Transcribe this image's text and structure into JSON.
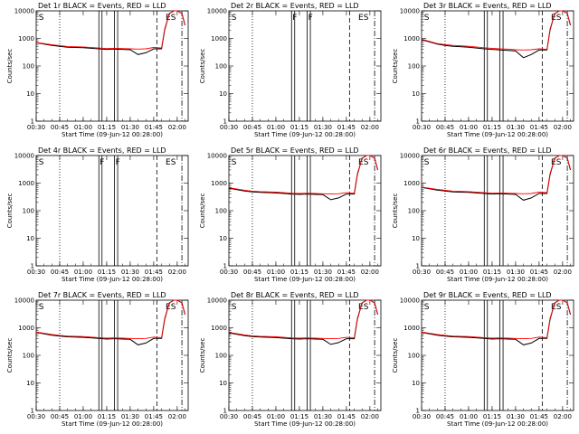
{
  "figure": {
    "ylabel": "Counts/sec",
    "xlabel": "Start Time (09-Jun-12 00:28:00)",
    "x_tick_labels": [
      "00:30",
      "00:45",
      "01:00",
      "01:15",
      "01:30",
      "01:45",
      "02:00"
    ],
    "y_tick_labels": [
      "1",
      "10",
      "100",
      "1000",
      "10000"
    ]
  },
  "chart_data": [
    {
      "type": "line",
      "title": "Det 1r BLACK = Events, RED = LLD",
      "has_data": true,
      "markers": [
        {
          "text": "S",
          "x": "00:31"
        },
        {
          "text": "ES",
          "x": "01:52"
        }
      ],
      "xlim": [
        "00:30",
        "02:07"
      ],
      "ylim": [
        1,
        10000
      ],
      "yscale": "log",
      "x": [
        "00:30",
        "00:40",
        "00:45",
        "00:50",
        "01:00",
        "01:10",
        "01:15",
        "01:20",
        "01:25",
        "01:30",
        "01:35",
        "01:40",
        "01:45",
        "01:50",
        "01:52",
        "01:55",
        "01:58",
        "02:00",
        "02:03",
        "02:05"
      ],
      "series": [
        {
          "color": "#000000",
          "values": [
            700,
            560,
            520,
            480,
            460,
            420,
            400,
            410,
            400,
            390,
            260,
            300,
            420,
            420,
            2000,
            8000,
            10000,
            10000,
            8000,
            3000
          ]
        },
        {
          "color": "#ff0000",
          "values": [
            720,
            590,
            550,
            510,
            490,
            450,
            430,
            440,
            430,
            420,
            410,
            420,
            470,
            450,
            2200,
            8000,
            10000,
            10000,
            8000,
            3200
          ]
        }
      ]
    },
    {
      "type": "line",
      "title": "Det 2r BLACK = Events, RED = LLD",
      "has_data": false,
      "markers": [
        {
          "text": "S",
          "x": "00:31"
        },
        {
          "text": "F",
          "x": "01:10"
        },
        {
          "text": "F",
          "x": "01:20"
        },
        {
          "text": "ES",
          "x": "01:52"
        }
      ],
      "xlim": [
        "00:30",
        "02:07"
      ],
      "ylim": [
        1,
        10000
      ],
      "yscale": "log",
      "x": [],
      "series": []
    },
    {
      "type": "line",
      "title": "Det 3r BLACK = Events, RED = LLD",
      "has_data": true,
      "markers": [
        {
          "text": "S",
          "x": "00:31"
        },
        {
          "text": "ES",
          "x": "01:52"
        }
      ],
      "xlim": [
        "00:30",
        "02:07"
      ],
      "ylim": [
        1,
        10000
      ],
      "yscale": "log",
      "x": [
        "00:30",
        "00:40",
        "00:45",
        "00:50",
        "01:00",
        "01:10",
        "01:15",
        "01:20",
        "01:25",
        "01:30",
        "01:35",
        "01:40",
        "01:45",
        "01:50",
        "01:52",
        "01:55",
        "01:58",
        "02:00",
        "02:03",
        "02:05"
      ],
      "series": [
        {
          "color": "#000000",
          "values": [
            900,
            620,
            560,
            520,
            480,
            420,
            400,
            380,
            370,
            350,
            200,
            260,
            380,
            380,
            2000,
            8000,
            10000,
            10000,
            8000,
            3000
          ]
        },
        {
          "color": "#ff0000",
          "values": [
            940,
            650,
            600,
            560,
            520,
            460,
            440,
            420,
            410,
            390,
            380,
            390,
            420,
            400,
            2200,
            8000,
            10000,
            10000,
            8000,
            3200
          ]
        }
      ]
    },
    {
      "type": "line",
      "title": "Det 4r BLACK = Events, RED = LLD",
      "has_data": false,
      "markers": [
        {
          "text": "S",
          "x": "00:31"
        },
        {
          "text": "F",
          "x": "01:10"
        },
        {
          "text": "F",
          "x": "01:20"
        },
        {
          "text": "ES",
          "x": "01:52"
        }
      ],
      "xlim": [
        "00:30",
        "02:07"
      ],
      "ylim": [
        1,
        10000
      ],
      "yscale": "log",
      "x": [],
      "series": []
    },
    {
      "type": "line",
      "title": "Det 5r BLACK = Events, RED = LLD",
      "has_data": true,
      "markers": [
        {
          "text": "S",
          "x": "00:31"
        },
        {
          "text": "ES",
          "x": "01:52"
        }
      ],
      "xlim": [
        "00:30",
        "02:07"
      ],
      "ylim": [
        1,
        10000
      ],
      "yscale": "log",
      "x": [
        "00:30",
        "00:40",
        "00:45",
        "00:50",
        "01:00",
        "01:10",
        "01:15",
        "01:20",
        "01:25",
        "01:30",
        "01:35",
        "01:40",
        "01:45",
        "01:50",
        "01:52",
        "01:55",
        "01:58",
        "02:00",
        "02:03",
        "02:05"
      ],
      "series": [
        {
          "color": "#000000",
          "values": [
            650,
            520,
            480,
            460,
            440,
            400,
            390,
            400,
            390,
            380,
            250,
            290,
            400,
            400,
            2000,
            8000,
            10000,
            10000,
            8000,
            3000
          ]
        },
        {
          "color": "#ff0000",
          "values": [
            680,
            550,
            510,
            490,
            470,
            430,
            420,
            430,
            420,
            410,
            400,
            410,
            450,
            430,
            2200,
            8000,
            10000,
            10000,
            8000,
            3200
          ]
        }
      ]
    },
    {
      "type": "line",
      "title": "Det 6r BLACK = Events, RED = LLD",
      "has_data": true,
      "markers": [
        {
          "text": "S",
          "x": "00:31"
        },
        {
          "text": "ES",
          "x": "01:52"
        }
      ],
      "xlim": [
        "00:30",
        "02:07"
      ],
      "ylim": [
        1,
        10000
      ],
      "yscale": "log",
      "x": [
        "00:30",
        "00:40",
        "00:45",
        "00:50",
        "01:00",
        "01:10",
        "01:15",
        "01:20",
        "01:25",
        "01:30",
        "01:35",
        "01:40",
        "01:45",
        "01:50",
        "01:52",
        "01:55",
        "01:58",
        "02:00",
        "02:03",
        "02:05"
      ],
      "series": [
        {
          "color": "#000000",
          "values": [
            700,
            560,
            520,
            480,
            460,
            420,
            400,
            410,
            400,
            390,
            240,
            290,
            420,
            420,
            2000,
            8000,
            10000,
            10000,
            8000,
            3000
          ]
        },
        {
          "color": "#ff0000",
          "values": [
            720,
            590,
            550,
            510,
            490,
            450,
            430,
            440,
            430,
            420,
            410,
            420,
            470,
            450,
            2200,
            8000,
            10000,
            10000,
            8000,
            3200
          ]
        }
      ]
    },
    {
      "type": "line",
      "title": "Det 7r BLACK = Events, RED = LLD",
      "has_data": true,
      "markers": [
        {
          "text": "S",
          "x": "00:31"
        },
        {
          "text": "ES",
          "x": "01:52"
        }
      ],
      "xlim": [
        "00:30",
        "02:07"
      ],
      "ylim": [
        1,
        10000
      ],
      "yscale": "log",
      "x": [
        "00:30",
        "00:40",
        "00:45",
        "00:50",
        "01:00",
        "01:10",
        "01:15",
        "01:20",
        "01:25",
        "01:30",
        "01:35",
        "01:40",
        "01:45",
        "01:50",
        "01:52",
        "01:55",
        "01:58",
        "02:00",
        "02:03",
        "02:05"
      ],
      "series": [
        {
          "color": "#000000",
          "values": [
            680,
            540,
            500,
            470,
            450,
            410,
            390,
            400,
            390,
            380,
            240,
            280,
            410,
            410,
            2000,
            8000,
            10000,
            10000,
            8000,
            3000
          ]
        },
        {
          "color": "#ff0000",
          "values": [
            700,
            570,
            530,
            500,
            480,
            440,
            420,
            430,
            420,
            410,
            400,
            410,
            460,
            440,
            2200,
            8000,
            10000,
            10000,
            8000,
            3200
          ]
        }
      ]
    },
    {
      "type": "line",
      "title": "Det 8r BLACK = Events, RED = LLD",
      "has_data": true,
      "markers": [
        {
          "text": "S",
          "x": "00:31"
        },
        {
          "text": "ES",
          "x": "01:52"
        }
      ],
      "xlim": [
        "00:30",
        "02:07"
      ],
      "ylim": [
        1,
        10000
      ],
      "yscale": "log",
      "x": [
        "00:30",
        "00:40",
        "00:45",
        "00:50",
        "01:00",
        "01:10",
        "01:15",
        "01:20",
        "01:25",
        "01:30",
        "01:35",
        "01:40",
        "01:45",
        "01:50",
        "01:52",
        "01:55",
        "01:58",
        "02:00",
        "02:03",
        "02:05"
      ],
      "series": [
        {
          "color": "#000000",
          "values": [
            650,
            520,
            480,
            460,
            440,
            400,
            390,
            400,
            390,
            380,
            250,
            290,
            400,
            400,
            2000,
            8000,
            10000,
            10000,
            8000,
            3000
          ]
        },
        {
          "color": "#ff0000",
          "values": [
            680,
            550,
            510,
            490,
            470,
            430,
            420,
            430,
            420,
            410,
            400,
            410,
            450,
            430,
            2200,
            8000,
            10000,
            10000,
            8000,
            3200
          ]
        }
      ]
    },
    {
      "type": "line",
      "title": "Det 9r BLACK = Events, RED = LLD",
      "has_data": true,
      "markers": [
        {
          "text": "S",
          "x": "00:31"
        },
        {
          "text": "ES",
          "x": "01:52"
        }
      ],
      "xlim": [
        "00:30",
        "02:07"
      ],
      "ylim": [
        1,
        10000
      ],
      "yscale": "log",
      "x": [
        "00:30",
        "00:40",
        "00:45",
        "00:50",
        "01:00",
        "01:10",
        "01:15",
        "01:20",
        "01:25",
        "01:30",
        "01:35",
        "01:40",
        "01:45",
        "01:50",
        "01:52",
        "01:55",
        "01:58",
        "02:00",
        "02:03",
        "02:05"
      ],
      "series": [
        {
          "color": "#000000",
          "values": [
            680,
            540,
            500,
            470,
            450,
            410,
            390,
            400,
            390,
            380,
            240,
            280,
            410,
            410,
            2000,
            8000,
            10000,
            10000,
            8000,
            3000
          ]
        },
        {
          "color": "#ff0000",
          "values": [
            700,
            570,
            530,
            500,
            480,
            440,
            420,
            430,
            420,
            410,
            400,
            410,
            460,
            440,
            2200,
            8000,
            10000,
            10000,
            8000,
            3200
          ]
        }
      ]
    }
  ],
  "vertical_lines": [
    {
      "x": "00:45",
      "style": "dotted"
    },
    {
      "x": "01:10",
      "style": "solid"
    },
    {
      "x": "01:12",
      "style": "solid"
    },
    {
      "x": "01:20",
      "style": "solid"
    },
    {
      "x": "01:22",
      "style": "solid"
    },
    {
      "x": "01:47",
      "style": "dashed"
    },
    {
      "x": "02:03",
      "style": "dashdot"
    }
  ]
}
